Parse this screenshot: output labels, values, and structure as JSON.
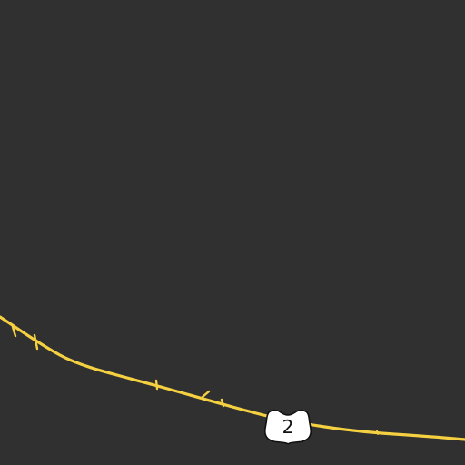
{
  "map": {
    "background_color": "#303030",
    "road": {
      "kind": "highway",
      "color": "#f5d142",
      "shield": {
        "type": "us-route-shield",
        "label": "2",
        "fill_color": "#ffffff",
        "text_color": "#111111"
      }
    }
  }
}
